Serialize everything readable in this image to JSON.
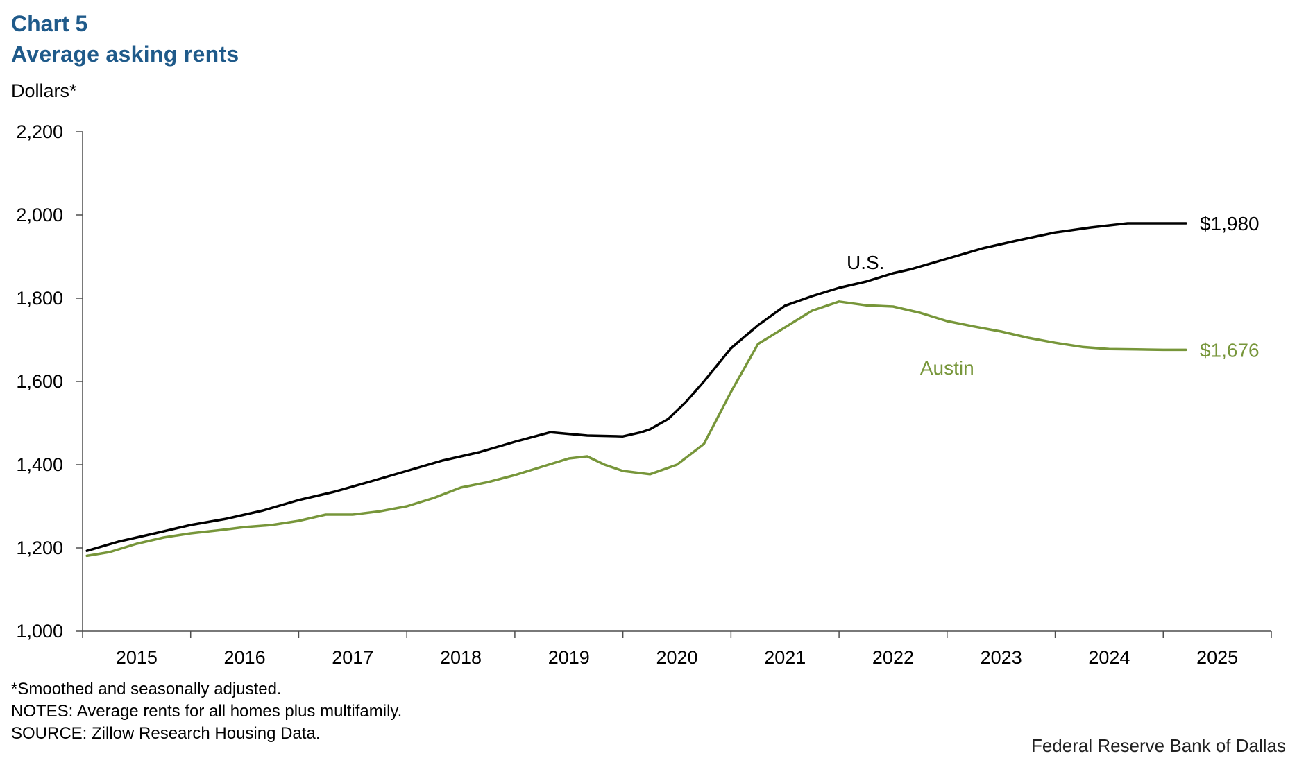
{
  "header": {
    "chart_number": "Chart 5",
    "title": "Average asking rents",
    "y_unit": "Dollars*"
  },
  "footer": {
    "footnote": "*Smoothed and seasonally adjusted.",
    "notes": "NOTES: Average rents for all homes plus multifamily.",
    "source": "SOURCE: Zillow Research Housing Data.",
    "credit": "Federal Reserve Bank of Dallas"
  },
  "colors": {
    "title": "#1f5a8a",
    "us": "#000000",
    "austin": "#77963a",
    "axis": "#4d4d4d"
  },
  "chart_data": {
    "type": "line",
    "title": "Average asking rents",
    "xlabel": "",
    "ylabel": "Dollars*",
    "ylim": [
      1000,
      2200
    ],
    "yticks": [
      1000,
      1200,
      1400,
      1600,
      1800,
      2000,
      2200
    ],
    "ytick_labels": [
      "1,000",
      "1,200",
      "1,400",
      "1,600",
      "1,800",
      "2,000",
      "2,200"
    ],
    "xlim": [
      2015.0,
      2026.0
    ],
    "x_categories": [
      "2015",
      "2016",
      "2017",
      "2018",
      "2019",
      "2020",
      "2021",
      "2022",
      "2023",
      "2024",
      "2025"
    ],
    "grid": false,
    "series": [
      {
        "name": "U.S.",
        "label": "U.S.",
        "end_label": "$1,980",
        "color": "#000000",
        "x": [
          2015.04,
          2015.33,
          2015.67,
          2016.0,
          2016.33,
          2016.67,
          2017.0,
          2017.33,
          2017.67,
          2018.0,
          2018.33,
          2018.67,
          2019.0,
          2019.33,
          2019.67,
          2020.0,
          2020.17,
          2020.25,
          2020.42,
          2020.58,
          2020.75,
          2021.0,
          2021.25,
          2021.5,
          2021.75,
          2022.0,
          2022.25,
          2022.5,
          2022.67,
          2023.0,
          2023.33,
          2023.67,
          2024.0,
          2024.33,
          2024.67,
          2025.0,
          2025.21
        ],
        "y": [
          1193,
          1215,
          1235,
          1255,
          1270,
          1290,
          1315,
          1335,
          1360,
          1385,
          1410,
          1430,
          1455,
          1478,
          1470,
          1468,
          1478,
          1485,
          1510,
          1550,
          1600,
          1680,
          1735,
          1782,
          1805,
          1825,
          1840,
          1860,
          1870,
          1895,
          1920,
          1940,
          1958,
          1970,
          1980,
          1980,
          1980
        ]
      },
      {
        "name": "Austin",
        "label": "Austin",
        "end_label": "$1,676",
        "color": "#77963a",
        "x": [
          2015.04,
          2015.25,
          2015.5,
          2015.75,
          2016.0,
          2016.25,
          2016.5,
          2016.75,
          2017.0,
          2017.25,
          2017.5,
          2017.75,
          2018.0,
          2018.25,
          2018.5,
          2018.75,
          2019.0,
          2019.25,
          2019.5,
          2019.67,
          2019.83,
          2020.0,
          2020.25,
          2020.5,
          2020.75,
          2021.0,
          2021.25,
          2021.5,
          2021.75,
          2022.0,
          2022.25,
          2022.5,
          2022.75,
          2023.0,
          2023.25,
          2023.5,
          2023.75,
          2024.0,
          2024.25,
          2024.5,
          2024.75,
          2025.0,
          2025.21
        ],
        "y": [
          1181,
          1190,
          1210,
          1225,
          1235,
          1242,
          1250,
          1255,
          1265,
          1280,
          1280,
          1288,
          1300,
          1320,
          1345,
          1358,
          1375,
          1395,
          1415,
          1420,
          1400,
          1385,
          1377,
          1400,
          1450,
          1575,
          1690,
          1730,
          1770,
          1792,
          1783,
          1780,
          1765,
          1745,
          1732,
          1720,
          1705,
          1693,
          1683,
          1678,
          1677,
          1676,
          1676
        ]
      }
    ]
  }
}
